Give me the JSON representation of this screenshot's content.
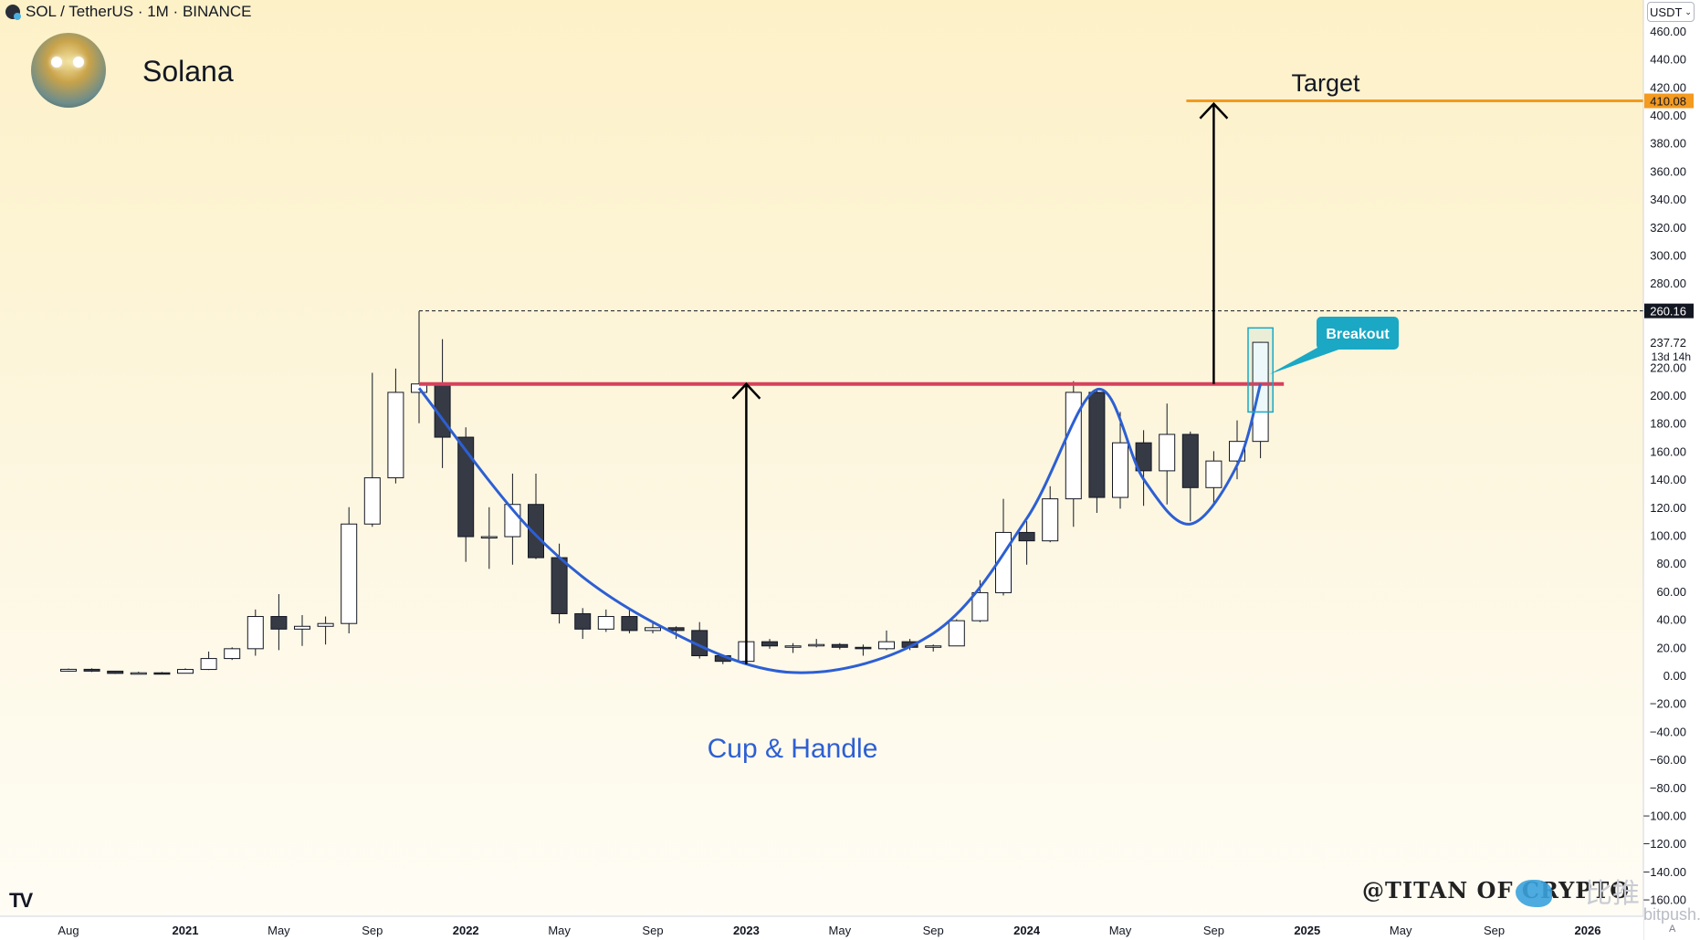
{
  "header": {
    "symbol_line": "SOL / TetherUS · 1M · BINANCE",
    "title": "Solana",
    "currency": "USDT",
    "currency_icon": "chevron-down-icon"
  },
  "price_labels": {
    "target_price": "410.08",
    "resistance_price": "260.16",
    "last_price": "237.72",
    "countdown": "13d 14h"
  },
  "annotations": {
    "target": "Target",
    "breakout": "Breakout",
    "pattern": "Cup & Handle"
  },
  "watermark": "@TITAN OF CRYPTO",
  "source_watermark": {
    "cn": "比推",
    "en": "bitpush.news"
  },
  "scale_mode": "A",
  "colors": {
    "bull_body": "#ffffff",
    "bear_body": "#363a45",
    "wick": "#131722",
    "resistance": "#d6415d",
    "target": "#f39a1f",
    "cup": "#2d5fd3",
    "breakout_label": "#1aa8c4",
    "arrow": "#000000"
  },
  "chart_data": {
    "type": "candlestick",
    "title": "Solana",
    "symbol": "SOL / TetherUS",
    "interval": "1M",
    "exchange": "BINANCE",
    "ylim": [
      -170,
      470
    ],
    "y_ticks": [
      460,
      440,
      420,
      400,
      380,
      360,
      340,
      320,
      300,
      280,
      220,
      200,
      180,
      160,
      140,
      120,
      100,
      80,
      60,
      40,
      20,
      0,
      -20,
      -40,
      -60,
      -80,
      -100,
      -120,
      -140,
      -160
    ],
    "y_tick_labels": [
      "460.00",
      "440.00",
      "420.00",
      "400.00",
      "380.00",
      "360.00",
      "340.00",
      "320.00",
      "300.00",
      "280.00",
      "220.00",
      "200.00",
      "180.00",
      "160.00",
      "140.00",
      "120.00",
      "100.00",
      "80.00",
      "60.00",
      "40.00",
      "20.00",
      "0.00",
      "−20.00",
      "−40.00",
      "−60.00",
      "−80.00",
      "−100.00",
      "−120.00",
      "−140.00",
      "−160.00"
    ],
    "x_ticks": [
      {
        "label": "Aug",
        "date": "2020-08"
      },
      {
        "label": "2021",
        "date": "2021-01"
      },
      {
        "label": "May",
        "date": "2021-05"
      },
      {
        "label": "Sep",
        "date": "2021-09"
      },
      {
        "label": "2022",
        "date": "2022-01"
      },
      {
        "label": "May",
        "date": "2022-05"
      },
      {
        "label": "Sep",
        "date": "2022-09"
      },
      {
        "label": "2023",
        "date": "2023-01"
      },
      {
        "label": "May",
        "date": "2023-05"
      },
      {
        "label": "Sep",
        "date": "2023-09"
      },
      {
        "label": "2024",
        "date": "2024-01"
      },
      {
        "label": "May",
        "date": "2024-05"
      },
      {
        "label": "Sep",
        "date": "2024-09"
      },
      {
        "label": "2025",
        "date": "2025-01"
      },
      {
        "label": "May",
        "date": "2025-05"
      },
      {
        "label": "Sep",
        "date": "2025-09"
      },
      {
        "label": "2026",
        "date": "2026-01"
      }
    ],
    "x_range": [
      "2020-07",
      "2026-02"
    ],
    "candles": [
      {
        "date": "2020-08",
        "open": 3.0,
        "high": 4.9,
        "low": 2.7,
        "close": 4.3
      },
      {
        "date": "2020-09",
        "open": 4.3,
        "high": 5.0,
        "low": 2.4,
        "close": 3.0
      },
      {
        "date": "2020-10",
        "open": 3.0,
        "high": 3.0,
        "low": 1.0,
        "close": 1.4
      },
      {
        "date": "2020-11",
        "open": 1.4,
        "high": 2.6,
        "low": 1.0,
        "close": 1.8
      },
      {
        "date": "2020-12",
        "open": 1.8,
        "high": 2.4,
        "low": 1.1,
        "close": 1.5
      },
      {
        "date": "2021-01",
        "open": 1.5,
        "high": 5.0,
        "low": 1.3,
        "close": 4.2
      },
      {
        "date": "2021-02",
        "open": 4.2,
        "high": 17.0,
        "low": 3.8,
        "close": 12.0
      },
      {
        "date": "2021-03",
        "open": 12.0,
        "high": 20.0,
        "low": 11.0,
        "close": 19.0
      },
      {
        "date": "2021-04",
        "open": 19.0,
        "high": 47.0,
        "low": 14.0,
        "close": 42.0
      },
      {
        "date": "2021-05",
        "open": 42.0,
        "high": 58.0,
        "low": 18.0,
        "close": 33.0
      },
      {
        "date": "2021-06",
        "open": 33.0,
        "high": 43.0,
        "low": 21.0,
        "close": 35.0
      },
      {
        "date": "2021-07",
        "open": 35.0,
        "high": 42.0,
        "low": 22.0,
        "close": 37.0
      },
      {
        "date": "2021-08",
        "open": 37.0,
        "high": 120.0,
        "low": 30.0,
        "close": 108.0
      },
      {
        "date": "2021-09",
        "open": 108.0,
        "high": 216.0,
        "low": 106.0,
        "close": 141.0
      },
      {
        "date": "2021-10",
        "open": 141.0,
        "high": 219.0,
        "low": 137.0,
        "close": 202.0
      },
      {
        "date": "2021-11",
        "open": 202.0,
        "high": 260.0,
        "low": 180.0,
        "close": 208.0
      },
      {
        "date": "2021-12",
        "open": 208.0,
        "high": 240.0,
        "low": 148.0,
        "close": 170.0
      },
      {
        "date": "2022-01",
        "open": 170.0,
        "high": 177.0,
        "low": 81.0,
        "close": 99.0
      },
      {
        "date": "2022-02",
        "open": 99.0,
        "high": 120.0,
        "low": 76.0,
        "close": 99.0
      },
      {
        "date": "2022-03",
        "open": 99.0,
        "high": 144.0,
        "low": 79.0,
        "close": 122.0
      },
      {
        "date": "2022-04",
        "open": 122.0,
        "high": 144.0,
        "low": 83.0,
        "close": 84.0
      },
      {
        "date": "2022-05",
        "open": 84.0,
        "high": 94.0,
        "low": 37.0,
        "close": 44.0
      },
      {
        "date": "2022-06",
        "open": 44.0,
        "high": 48.0,
        "low": 26.0,
        "close": 33.0
      },
      {
        "date": "2022-07",
        "open": 33.0,
        "high": 47.0,
        "low": 31.0,
        "close": 42.0
      },
      {
        "date": "2022-08",
        "open": 42.0,
        "high": 47.0,
        "low": 30.0,
        "close": 32.0
      },
      {
        "date": "2022-09",
        "open": 32.0,
        "high": 38.0,
        "low": 30.0,
        "close": 34.0
      },
      {
        "date": "2022-10",
        "open": 34.0,
        "high": 35.0,
        "low": 26.0,
        "close": 32.0
      },
      {
        "date": "2022-11",
        "open": 32.0,
        "high": 38.0,
        "low": 12.0,
        "close": 14.0
      },
      {
        "date": "2022-12",
        "open": 14.0,
        "high": 14.5,
        "low": 8.0,
        "close": 10.0
      },
      {
        "date": "2023-01",
        "open": 10.0,
        "high": 26.0,
        "low": 8.5,
        "close": 24.0
      },
      {
        "date": "2023-02",
        "open": 24.0,
        "high": 26.0,
        "low": 19.0,
        "close": 21.0
      },
      {
        "date": "2023-03",
        "open": 21.0,
        "high": 23.0,
        "low": 16.0,
        "close": 21.0
      },
      {
        "date": "2023-04",
        "open": 21.0,
        "high": 26.0,
        "low": 20.0,
        "close": 22.0
      },
      {
        "date": "2023-05",
        "open": 22.0,
        "high": 23.0,
        "low": 18.5,
        "close": 20.0
      },
      {
        "date": "2023-06",
        "open": 20.0,
        "high": 22.0,
        "low": 14.0,
        "close": 19.0
      },
      {
        "date": "2023-07",
        "open": 19.0,
        "high": 32.0,
        "low": 18.0,
        "close": 24.0
      },
      {
        "date": "2023-08",
        "open": 24.0,
        "high": 26.0,
        "low": 18.0,
        "close": 20.0
      },
      {
        "date": "2023-09",
        "open": 20.0,
        "high": 22.0,
        "low": 17.0,
        "close": 21.0
      },
      {
        "date": "2023-10",
        "open": 21.0,
        "high": 40.0,
        "low": 21.0,
        "close": 39.0
      },
      {
        "date": "2023-11",
        "open": 39.0,
        "high": 68.0,
        "low": 38.0,
        "close": 59.0
      },
      {
        "date": "2023-12",
        "open": 59.0,
        "high": 126.0,
        "low": 57.0,
        "close": 102.0
      },
      {
        "date": "2024-01",
        "open": 102.0,
        "high": 110.0,
        "low": 79.0,
        "close": 96.0
      },
      {
        "date": "2024-02",
        "open": 96.0,
        "high": 135.0,
        "low": 95.0,
        "close": 126.0
      },
      {
        "date": "2024-03",
        "open": 126.0,
        "high": 210.0,
        "low": 106.0,
        "close": 202.0
      },
      {
        "date": "2024-04",
        "open": 202.0,
        "high": 205.0,
        "low": 116.0,
        "close": 127.0
      },
      {
        "date": "2024-05",
        "open": 127.0,
        "high": 188.0,
        "low": 119.0,
        "close": 166.0
      },
      {
        "date": "2024-06",
        "open": 166.0,
        "high": 175.0,
        "low": 121.0,
        "close": 146.0
      },
      {
        "date": "2024-07",
        "open": 146.0,
        "high": 194.0,
        "low": 122.0,
        "close": 172.0
      },
      {
        "date": "2024-08",
        "open": 172.0,
        "high": 174.0,
        "low": 110.0,
        "close": 134.0
      },
      {
        "date": "2024-09",
        "open": 134.0,
        "high": 160.0,
        "low": 121.0,
        "close": 153.0
      },
      {
        "date": "2024-10",
        "open": 153.0,
        "high": 182.0,
        "low": 140.0,
        "close": 167.0
      },
      {
        "date": "2024-11",
        "open": 167.0,
        "high": 238.0,
        "low": 155.0,
        "close": 237.72
      }
    ],
    "resistance_level": 208,
    "resistance_range": [
      "2021-11",
      "2024-12"
    ],
    "target_level": 410.08,
    "target_range": [
      "2024-09",
      "2026-02"
    ],
    "ath_level": 260.16,
    "ath_range": [
      "2021-11",
      "2026-02"
    ],
    "cup_curve": [
      {
        "date": "2021-11",
        "value": 205
      },
      {
        "date": "2022-04",
        "value": 100
      },
      {
        "date": "2022-09",
        "value": 38
      },
      {
        "date": "2023-03",
        "value": 2
      },
      {
        "date": "2023-09",
        "value": 30
      },
      {
        "date": "2024-01",
        "value": 112
      },
      {
        "date": "2024-04",
        "value": 204
      },
      {
        "date": "2024-06",
        "value": 140
      },
      {
        "date": "2024-08",
        "value": 108
      },
      {
        "date": "2024-10",
        "value": 150
      },
      {
        "date": "2024-11",
        "value": 208
      }
    ],
    "measured_move_arrow": {
      "date": "2023-01",
      "from": 8,
      "to": 208
    },
    "target_arrow": {
      "date": "2024-09",
      "from": 208,
      "to": 408
    },
    "breakout_box": {
      "date_from": "2024-10",
      "date_to": "2024-12",
      "low": 188,
      "high": 248
    }
  }
}
